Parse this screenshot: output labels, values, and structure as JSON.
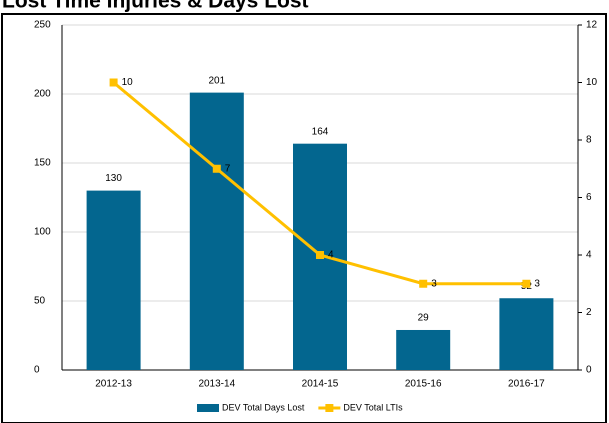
{
  "chart_data": {
    "type": "bar_line",
    "title": "Lost Time Injuries & Days Lost",
    "categories": [
      "2012-13",
      "2013-14",
      "2014-15",
      "2015-16",
      "2016-17"
    ],
    "series": [
      {
        "name": "DEV Total Days Lost",
        "type": "bar",
        "color": "#03668f",
        "values": [
          130,
          201,
          164,
          29,
          52
        ]
      },
      {
        "name": "DEV Total LTIs",
        "type": "line",
        "axis": "y2",
        "color": "#ffc000",
        "values": [
          10,
          7,
          4,
          3,
          3
        ]
      }
    ],
    "ylim": [
      0,
      250
    ],
    "yticks": [
      0,
      50,
      100,
      150,
      200,
      250
    ],
    "y2lim": [
      0,
      12
    ],
    "y2ticks": [
      0,
      2,
      4,
      6,
      8,
      10,
      12
    ],
    "grid": true,
    "legend": "bottom"
  }
}
